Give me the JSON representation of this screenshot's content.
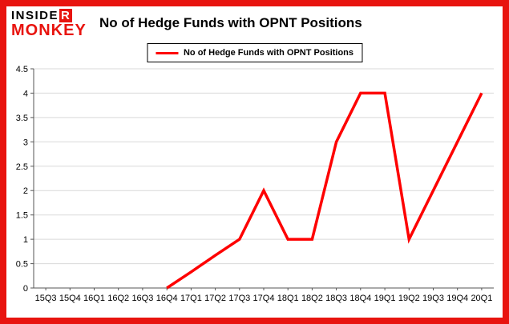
{
  "brand": {
    "logo_part1": "INSIDE",
    "logo_part2": "R",
    "logo_part3": "MONKEY",
    "accent_color": "#e8140f"
  },
  "header": {
    "title": "No of Hedge Funds with OPNT Positions"
  },
  "legend": {
    "label": "No of Hedge Funds with OPNT Positions",
    "line_color": "#fe0000"
  },
  "chart_data": {
    "type": "line",
    "title": "No of Hedge Funds with OPNT Positions",
    "categories": [
      "15Q3",
      "15Q4",
      "16Q1",
      "16Q2",
      "16Q3",
      "16Q4",
      "17Q1",
      "17Q2",
      "17Q3",
      "17Q4",
      "18Q1",
      "18Q2",
      "18Q3",
      "18Q4",
      "19Q1",
      "19Q2",
      "19Q3",
      "19Q4",
      "20Q1"
    ],
    "series": [
      {
        "name": "No of Hedge Funds with OPNT Positions",
        "color": "#fe0000",
        "values": [
          null,
          null,
          null,
          null,
          null,
          0,
          0.33,
          0.67,
          1,
          2,
          1,
          1,
          3,
          4,
          4,
          1,
          2,
          3,
          4
        ]
      }
    ],
    "ylim": [
      0,
      4.5
    ],
    "ytick_step": 0.5,
    "grid": true,
    "legend_position": "top",
    "xlabel": "",
    "ylabel": ""
  }
}
